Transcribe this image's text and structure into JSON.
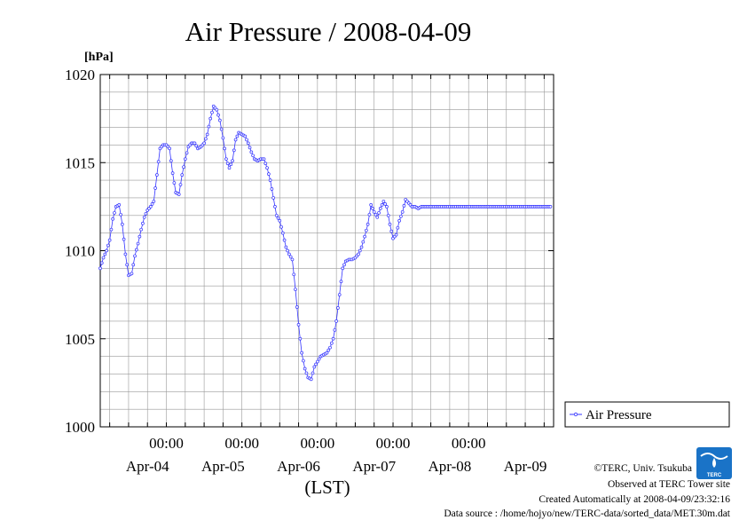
{
  "chart_data": {
    "type": "line",
    "title": "Air Pressure / 2008-04-09",
    "unit_label": "[hPa]",
    "xlabel": "(LST)",
    "ylabel": "",
    "ylim": [
      1000,
      1020
    ],
    "yticks": [
      1000,
      1005,
      1010,
      1015,
      1020
    ],
    "y_minor_step": 1,
    "x_unit": "hours from 2008-04-03 21:00 LST",
    "xlim": [
      0,
      144
    ],
    "grid": true,
    "time_ticks": [
      {
        "x": 21,
        "label": "00:00"
      },
      {
        "x": 45,
        "label": "00:00"
      },
      {
        "x": 69,
        "label": "00:00"
      },
      {
        "x": 93,
        "label": "00:00"
      },
      {
        "x": 117,
        "label": "00:00"
      }
    ],
    "date_labels": [
      "Apr-04",
      "Apr-05",
      "Apr-06",
      "Apr-07",
      "Apr-08",
      "Apr-09"
    ],
    "legend": {
      "position": "right",
      "entries": [
        "Air Pressure"
      ]
    },
    "series": [
      {
        "name": "Air Pressure",
        "color": "#3333ff",
        "x": [
          0,
          1,
          2,
          3,
          4,
          5,
          6,
          7,
          8,
          9,
          10,
          11,
          12,
          13,
          14,
          15,
          16,
          17,
          18,
          19,
          20,
          21,
          22,
          23,
          24,
          25,
          26,
          27,
          28,
          29,
          30,
          31,
          32,
          33,
          34,
          35,
          36,
          37,
          38,
          39,
          40,
          41,
          42,
          43,
          44,
          45,
          46,
          47,
          48,
          49,
          50,
          51,
          52,
          53,
          54,
          55,
          56,
          57,
          58,
          59,
          60,
          61,
          62,
          63,
          64,
          65,
          66,
          67,
          68,
          69,
          70,
          71,
          72,
          73,
          74,
          75,
          76,
          77,
          78,
          79,
          80,
          81,
          82,
          83,
          84,
          85,
          86,
          87,
          88,
          89,
          90,
          91,
          92,
          93,
          94,
          95,
          96,
          97,
          98,
          99,
          100,
          101,
          102,
          103,
          104,
          105,
          106,
          107,
          108,
          109,
          110,
          111,
          112,
          113,
          114,
          115,
          116,
          117,
          118,
          119,
          120,
          121,
          122,
          123,
          124,
          125,
          126,
          127,
          128,
          129,
          130,
          131,
          132,
          133,
          134,
          135,
          136,
          137,
          138,
          139,
          140,
          141,
          142,
          143
        ],
        "values": [
          1009.0,
          1009.6,
          1010.0,
          1010.6,
          1011.8,
          1012.5,
          1012.6,
          1011.5,
          1009.8,
          1008.6,
          1008.7,
          1009.7,
          1010.4,
          1011.2,
          1011.9,
          1012.3,
          1012.5,
          1012.8,
          1014.3,
          1015.8,
          1016.0,
          1016.0,
          1015.8,
          1014.4,
          1013.3,
          1013.2,
          1014.3,
          1015.2,
          1015.9,
          1016.1,
          1016.1,
          1015.8,
          1015.9,
          1016.1,
          1016.6,
          1017.5,
          1018.2,
          1018.0,
          1017.4,
          1016.4,
          1015.2,
          1014.7,
          1015.1,
          1016.3,
          1016.7,
          1016.6,
          1016.5,
          1016.1,
          1015.6,
          1015.2,
          1015.1,
          1015.2,
          1015.2,
          1014.7,
          1014.0,
          1013.0,
          1012.0,
          1011.7,
          1011.0,
          1010.2,
          1009.8,
          1009.5,
          1007.8,
          1005.8,
          1004.2,
          1003.3,
          1002.8,
          1002.7,
          1003.4,
          1003.7,
          1004.0,
          1004.1,
          1004.2,
          1004.5,
          1005.0,
          1006.0,
          1007.5,
          1009.0,
          1009.4,
          1009.5,
          1009.5,
          1009.6,
          1009.8,
          1010.2,
          1010.8,
          1011.5,
          1012.6,
          1012.2,
          1011.9,
          1012.4,
          1012.8,
          1012.5,
          1011.5,
          1010.7,
          1010.9,
          1011.7,
          1012.2,
          1012.9,
          1012.7,
          1012.5,
          1012.5,
          1012.4,
          1012.5,
          1012.5,
          1012.5,
          1012.5,
          1012.5,
          1012.5,
          1012.5,
          1012.5,
          1012.5,
          1012.5,
          1012.5,
          1012.5,
          1012.5,
          1012.5,
          1012.5,
          1012.5,
          1012.5,
          1012.5,
          1012.5,
          1012.5,
          1012.5,
          1012.5,
          1012.5,
          1012.5,
          1012.5,
          1012.5,
          1012.5,
          1012.5,
          1012.5,
          1012.5,
          1012.5,
          1012.5,
          1012.5,
          1012.5,
          1012.5,
          1012.5,
          1012.5,
          1012.5,
          1012.5,
          1012.5,
          1012.5,
          1012.5
        ]
      }
    ]
  },
  "credits": {
    "copyright": "©TERC, Univ. Tsukuba",
    "site": "Observed at TERC Tower site",
    "created": "Created Automatically at 2008-04-09/23:32:16",
    "source": "Data source : /home/hojyo/new/TERC-data/sorted_data/MET.30m.dat",
    "logo_text": "TERC"
  },
  "colors": {
    "series": "#3333ff",
    "grid": "#999999",
    "logo": "#1a73c7"
  }
}
